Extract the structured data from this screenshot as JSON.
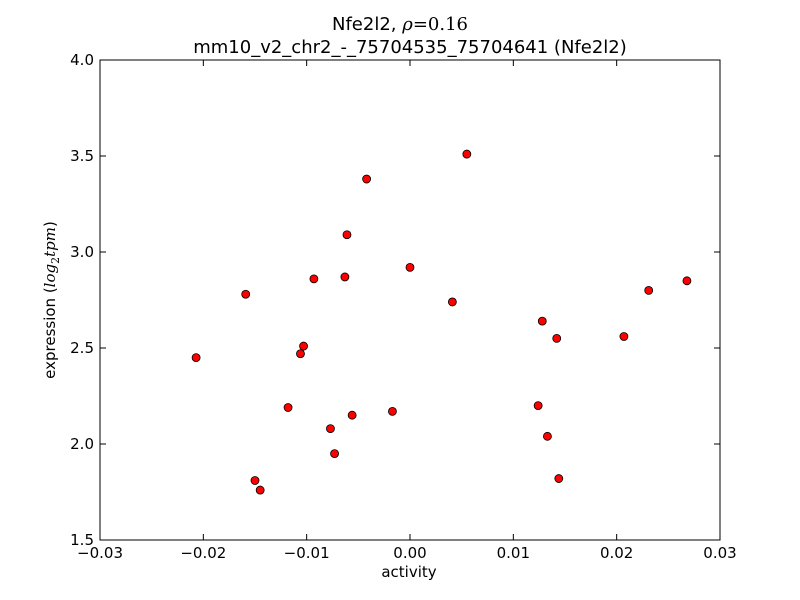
{
  "chart_data": {
    "type": "scatter",
    "title_gene": "Nfe2l2,",
    "title_rho_symbol": "ρ",
    "title_rho_value": "=0.16",
    "subtitle": "mm10_v2_chr2_-_75704535_75704641 (Nfe2l2)",
    "xlabel": "activity",
    "ylabel_prefix": "expression (",
    "ylabel_log": "log",
    "ylabel_sub": "2",
    "ylabel_tpm": "tpm",
    "ylabel_suffix": ")",
    "xlim": [
      -0.03,
      0.03
    ],
    "ylim": [
      1.5,
      4.0
    ],
    "xticks": [
      -0.03,
      -0.02,
      -0.01,
      0.0,
      0.01,
      0.02,
      0.03
    ],
    "xtick_labels": [
      "−0.03",
      "−0.02",
      "−0.01",
      "0.00",
      "0.01",
      "0.02",
      "0.03"
    ],
    "yticks": [
      1.5,
      2.0,
      2.5,
      3.0,
      3.5,
      4.0
    ],
    "ytick_labels": [
      "1.5",
      "2.0",
      "2.5",
      "3.0",
      "3.5",
      "4.0"
    ],
    "marker_color": "#ff0000",
    "grid": false,
    "points": [
      {
        "x": -0.0207,
        "y": 2.45
      },
      {
        "x": -0.0159,
        "y": 2.78
      },
      {
        "x": -0.015,
        "y": 1.81
      },
      {
        "x": -0.0145,
        "y": 1.76
      },
      {
        "x": -0.0118,
        "y": 2.19
      },
      {
        "x": -0.0106,
        "y": 2.47
      },
      {
        "x": -0.0103,
        "y": 2.51
      },
      {
        "x": -0.0093,
        "y": 2.86
      },
      {
        "x": -0.0077,
        "y": 2.08
      },
      {
        "x": -0.0073,
        "y": 1.95
      },
      {
        "x": -0.0063,
        "y": 2.87
      },
      {
        "x": -0.0061,
        "y": 3.09
      },
      {
        "x": -0.0056,
        "y": 2.15
      },
      {
        "x": -0.0042,
        "y": 3.38
      },
      {
        "x": -0.0017,
        "y": 2.17
      },
      {
        "x": 0.0,
        "y": 2.92
      },
      {
        "x": 0.0041,
        "y": 2.74
      },
      {
        "x": 0.0055,
        "y": 3.51
      },
      {
        "x": 0.0124,
        "y": 2.2
      },
      {
        "x": 0.0128,
        "y": 2.64
      },
      {
        "x": 0.0133,
        "y": 2.04
      },
      {
        "x": 0.0142,
        "y": 2.55
      },
      {
        "x": 0.0144,
        "y": 1.82
      },
      {
        "x": 0.0207,
        "y": 2.56
      },
      {
        "x": 0.0231,
        "y": 2.8
      },
      {
        "x": 0.0268,
        "y": 2.85
      }
    ]
  }
}
